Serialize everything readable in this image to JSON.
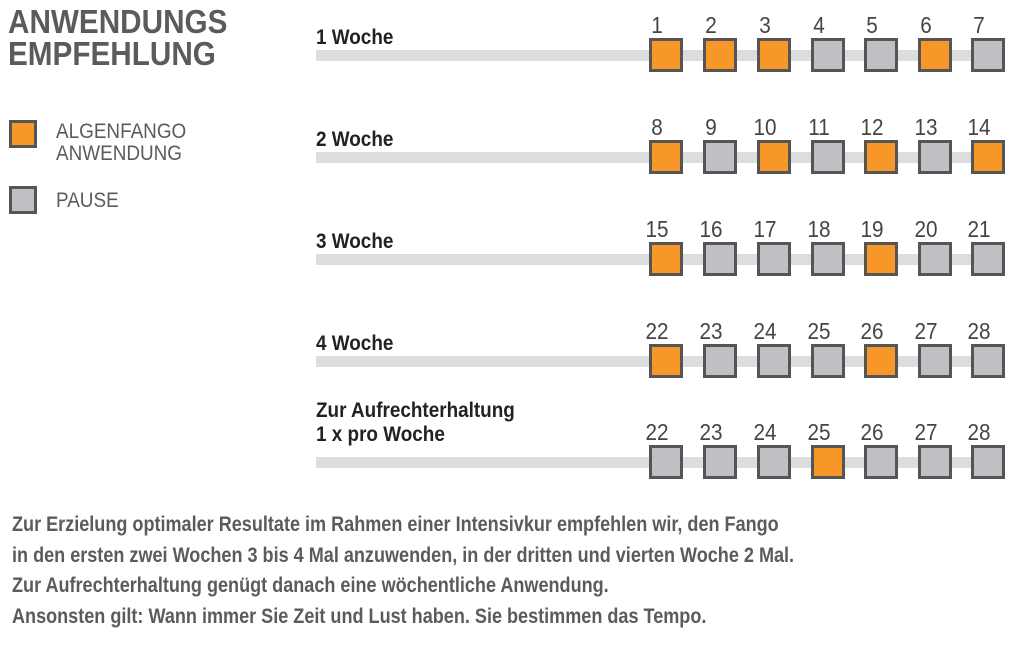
{
  "title": [
    "ANWENDUNGS",
    "EMPFEHLUNG"
  ],
  "legend": [
    {
      "label_lines": [
        "ALGENFANGO",
        "ANWENDUNG"
      ],
      "color": "#f7972a"
    },
    {
      "label_lines": [
        "PAUSE"
      ],
      "color": "#bfc0c3"
    }
  ],
  "rows": [
    {
      "label_lines": [
        "1 Woche"
      ],
      "days": [
        1,
        2,
        3,
        4,
        5,
        6,
        7
      ],
      "applied": [
        true,
        true,
        true,
        false,
        false,
        true,
        false
      ]
    },
    {
      "label_lines": [
        "2 Woche"
      ],
      "days": [
        8,
        9,
        10,
        11,
        12,
        13,
        14
      ],
      "applied": [
        true,
        false,
        true,
        false,
        true,
        false,
        true
      ]
    },
    {
      "label_lines": [
        "3 Woche"
      ],
      "days": [
        15,
        16,
        17,
        18,
        19,
        20,
        21
      ],
      "applied": [
        true,
        false,
        false,
        false,
        true,
        false,
        false
      ]
    },
    {
      "label_lines": [
        "4 Woche"
      ],
      "days": [
        22,
        23,
        24,
        25,
        26,
        27,
        28
      ],
      "applied": [
        true,
        false,
        false,
        false,
        true,
        false,
        false
      ]
    },
    {
      "label_lines": [
        "Zur Aufrechterhaltung",
        "1 x pro Woche"
      ],
      "days": [
        22,
        23,
        24,
        25,
        26,
        27,
        28
      ],
      "applied": [
        false,
        false,
        false,
        true,
        false,
        false,
        false
      ]
    }
  ],
  "footer": [
    "Zur Erzielung optimaler Resultate im Rahmen einer Intensivkur empfehlen wir, den Fango",
    "in den ersten zwei Wochen 3 bis 4 Mal anzuwenden, in der dritten und vierten Woche 2 Mal.",
    "Zur Aufrechterhaltung genügt danach eine wöchentliche Anwendung.",
    "Ansonsten gilt: Wann immer Sie Zeit und Lust haben. Sie bestimmen das Tempo."
  ]
}
